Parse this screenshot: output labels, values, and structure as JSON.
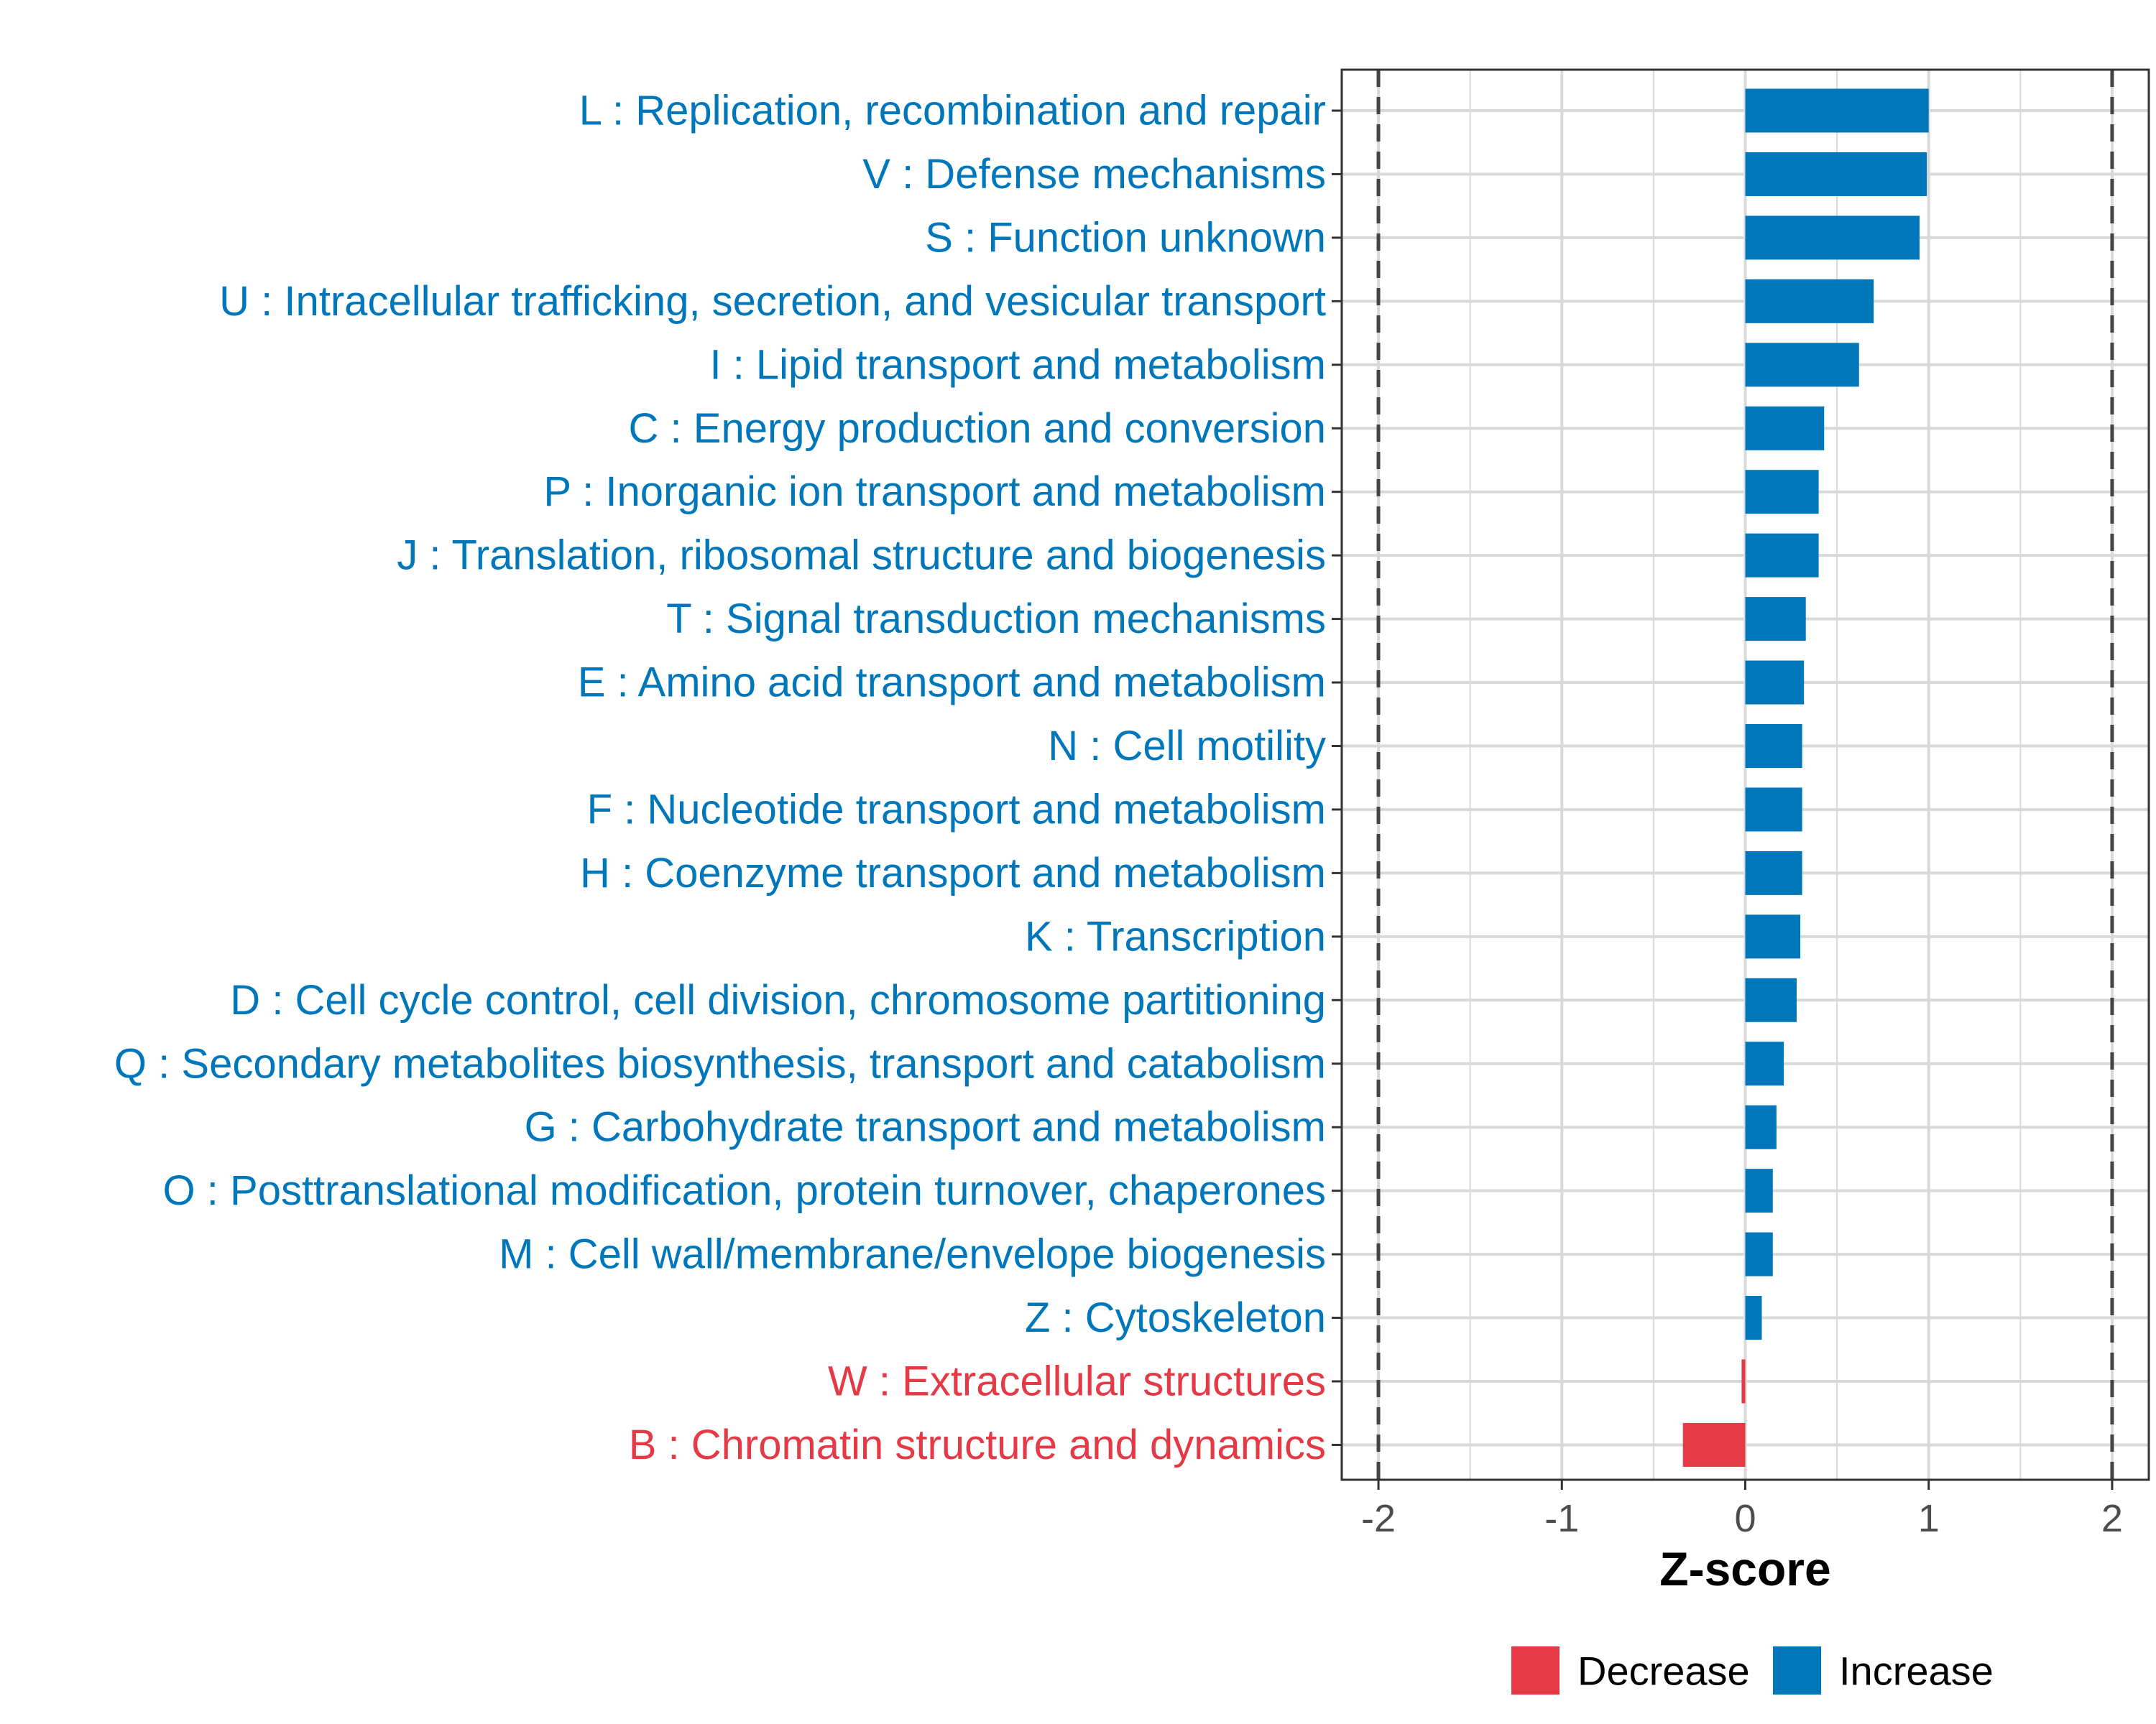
{
  "chart_data": {
    "type": "bar",
    "orientation": "horizontal",
    "categories": [
      "L : Replication, recombination and repair",
      "V : Defense mechanisms",
      "S : Function unknown",
      "U : Intracellular trafficking, secretion, and vesicular transport",
      "I : Lipid transport and metabolism",
      "C : Energy production and conversion",
      "P : Inorganic ion transport and metabolism",
      "J : Translation, ribosomal structure and biogenesis",
      "T : Signal transduction mechanisms",
      "E : Amino acid transport and metabolism",
      "N : Cell motility",
      "F : Nucleotide transport and metabolism",
      "H : Coenzyme transport and metabolism",
      "K : Transcription",
      "D : Cell cycle control, cell division, chromosome partitioning",
      "Q : Secondary metabolites biosynthesis, transport and catabolism",
      "G : Carbohydrate transport and metabolism",
      "O : Posttranslational modification, protein turnover, chaperones",
      "M : Cell wall/membrane/envelope biogenesis",
      "Z : Cytoskeleton",
      "W : Extracellular structures",
      "B : Chromatin structure and dynamics"
    ],
    "values": [
      1.0,
      0.99,
      0.95,
      0.7,
      0.62,
      0.43,
      0.4,
      0.4,
      0.33,
      0.32,
      0.31,
      0.31,
      0.31,
      0.3,
      0.28,
      0.21,
      0.17,
      0.15,
      0.15,
      0.09,
      -0.02,
      -0.34
    ],
    "groups": [
      "Increase",
      "Increase",
      "Increase",
      "Increase",
      "Increase",
      "Increase",
      "Increase",
      "Increase",
      "Increase",
      "Increase",
      "Increase",
      "Increase",
      "Increase",
      "Increase",
      "Increase",
      "Increase",
      "Increase",
      "Increase",
      "Increase",
      "Increase",
      "Decrease",
      "Decrease"
    ],
    "xlabel": "Z-score",
    "ylabel": "",
    "xlim": [
      -2.2,
      2.2
    ],
    "xticks": [
      -2,
      -1,
      0,
      1,
      2
    ],
    "xtick_labels": [
      "-2",
      "-1",
      "0",
      "1",
      "2"
    ],
    "reference_lines": [
      -2,
      2
    ],
    "grid": true,
    "legend": {
      "position": "bottom",
      "entries": [
        {
          "label": "Decrease",
          "color": "#e63946"
        },
        {
          "label": "Increase",
          "color": "#0077bb"
        }
      ]
    },
    "colors": {
      "Increase": "#0077bb",
      "Decrease": "#e63946",
      "grid": "#d9d9d9",
      "panel_border": "#333333",
      "reference_line": "#444444"
    }
  }
}
